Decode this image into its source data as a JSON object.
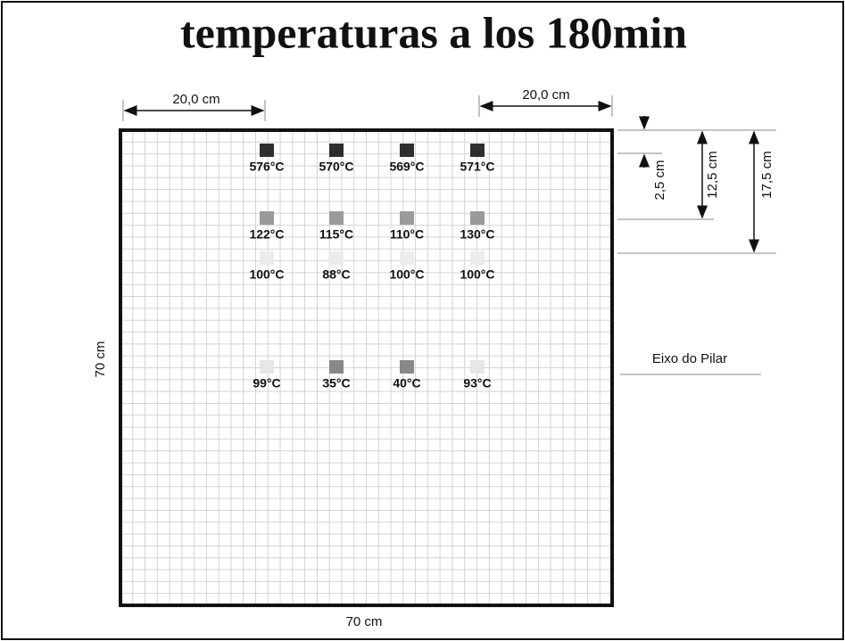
{
  "title": "temperaturas a los 180min",
  "dimensions": {
    "top_left": "20,0 cm",
    "top_right": "20,0 cm",
    "right_1": "2,5 cm",
    "right_2": "12,5 cm",
    "right_3": "17,5 cm",
    "left": "70 cm",
    "bottom": "70 cm",
    "axis": "Eixo do Pilar"
  },
  "sensors": [
    [
      {
        "label": "576°C",
        "color": "#2e2e2e"
      },
      {
        "label": "570°C",
        "color": "#2e2e2e"
      },
      {
        "label": "569°C",
        "color": "#2e2e2e"
      },
      {
        "label": "571°C",
        "color": "#2e2e2e"
      }
    ],
    [
      {
        "label": "122°C",
        "color": "#9a9a9a"
      },
      {
        "label": "115°C",
        "color": "#9a9a9a"
      },
      {
        "label": "110°C",
        "color": "#9a9a9a"
      },
      {
        "label": "130°C",
        "color": "#9a9a9a"
      }
    ],
    [
      {
        "label": "100°C",
        "color": "#ececec"
      },
      {
        "label": "88°C",
        "color": "#ececec"
      },
      {
        "label": "100°C",
        "color": "#ececec"
      },
      {
        "label": "100°C",
        "color": "#ececec"
      }
    ],
    [
      {
        "label": "99°C",
        "color": "#e6e6e6"
      },
      {
        "label": "35°C",
        "color": "#888888"
      },
      {
        "label": "40°C",
        "color": "#888888"
      },
      {
        "label": "93°C",
        "color": "#e6e6e6"
      }
    ]
  ]
}
